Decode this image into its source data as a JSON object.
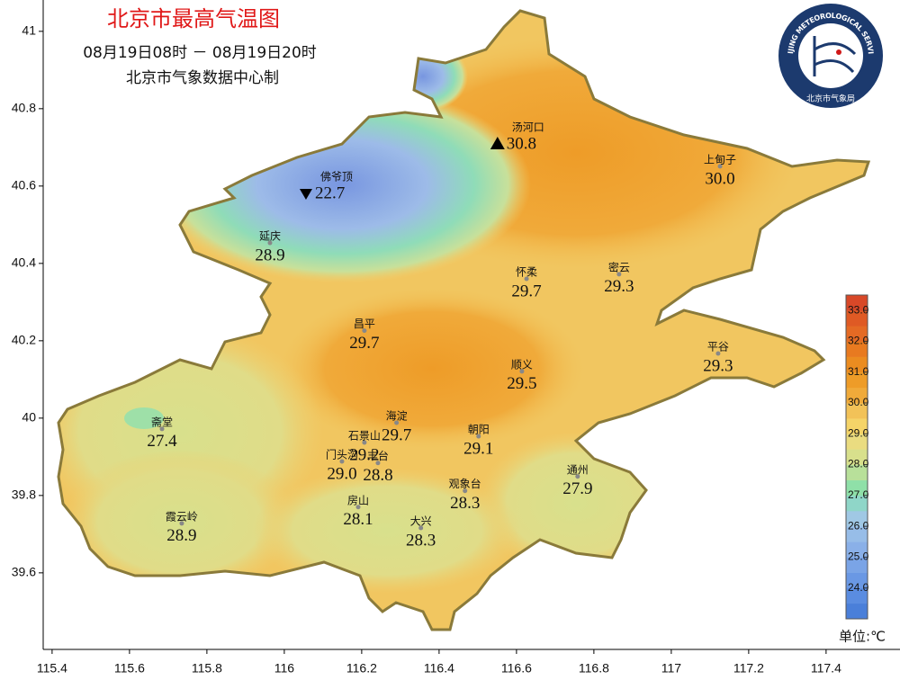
{
  "header": {
    "title": "北京市最高气温图",
    "period": "08月19日08时 － 08月19日20时",
    "source": "北京市气象数据中心制"
  },
  "logo": {
    "ring_text": "BEIJING METEOROLOGICAL SERVICE",
    "bottom_text": "北京市气象局"
  },
  "map": {
    "xlim": [
      115.377,
      117.591
    ],
    "ylim": [
      39.402,
      41.081
    ],
    "xticks": [
      115.4,
      115.6,
      115.8,
      116,
      116.2,
      116.4,
      116.6,
      116.8,
      117,
      117.2,
      117.4
    ],
    "yticks": [
      39.6,
      39.8,
      40,
      40.2,
      40.4,
      40.6,
      40.8,
      41
    ],
    "stations": [
      {
        "name": "汤河口",
        "lon": 116.551,
        "lat": 40.709,
        "value": 30.8,
        "marker": "max"
      },
      {
        "name": "佛爷顶",
        "lon": 116.056,
        "lat": 40.581,
        "value": 22.7,
        "marker": "min"
      },
      {
        "name": "上甸子",
        "lon": 117.126,
        "lat": 40.651,
        "value": 30.0,
        "value_label": "30.0"
      },
      {
        "name": "延庆",
        "lon": 115.963,
        "lat": 40.453,
        "value": 28.9
      },
      {
        "name": "怀柔",
        "lon": 116.626,
        "lat": 40.36,
        "value": 29.7
      },
      {
        "name": "密云",
        "lon": 116.865,
        "lat": 40.372,
        "value": 29.3
      },
      {
        "name": "昌平",
        "lon": 116.207,
        "lat": 40.226,
        "value": 29.7
      },
      {
        "name": "平谷",
        "lon": 117.121,
        "lat": 40.167,
        "value": 29.3
      },
      {
        "name": "顺义",
        "lon": 116.614,
        "lat": 40.121,
        "value": 29.5
      },
      {
        "name": "海淀",
        "lon": 116.29,
        "lat": 39.988,
        "value": 29.7
      },
      {
        "name": "石景山",
        "lon": 116.207,
        "lat": 39.937,
        "value": 29.2
      },
      {
        "name": "朝阳",
        "lon": 116.502,
        "lat": 39.953,
        "value": 29.1
      },
      {
        "name": "门头沟",
        "lon": 116.149,
        "lat": 39.888,
        "value": 29.0,
        "value_label": "29.0"
      },
      {
        "name": "丰台",
        "lon": 116.242,
        "lat": 39.884,
        "value": 28.8
      },
      {
        "name": "斋堂",
        "lon": 115.684,
        "lat": 39.972,
        "value": 27.4
      },
      {
        "name": "通州",
        "lon": 116.758,
        "lat": 39.849,
        "value": 27.9
      },
      {
        "name": "观象台",
        "lon": 116.467,
        "lat": 39.812,
        "value": 28.3
      },
      {
        "name": "房山",
        "lon": 116.191,
        "lat": 39.77,
        "value": 28.1
      },
      {
        "name": "大兴",
        "lon": 116.353,
        "lat": 39.716,
        "value": 28.3
      },
      {
        "name": "霞云岭",
        "lon": 115.735,
        "lat": 39.728,
        "value": 28.9
      }
    ]
  },
  "colorbar": {
    "range": [
      23,
      33.5
    ],
    "ticks": [
      {
        "value": 24,
        "label": "24.0"
      },
      {
        "value": 25,
        "label": "25.0"
      },
      {
        "value": 26,
        "label": "26.0"
      },
      {
        "value": 27,
        "label": "27.0"
      },
      {
        "value": 28,
        "label": "28.0"
      },
      {
        "value": 29,
        "label": "29.0"
      },
      {
        "value": 30,
        "label": "30.0"
      },
      {
        "value": 31,
        "label": "31.0"
      },
      {
        "value": 32,
        "label": "32.0"
      },
      {
        "value": 33,
        "label": "33.0"
      }
    ],
    "colors": [
      "#4a7fd9",
      "#5a8ce0",
      "#6a98e4",
      "#7aa4e6",
      "#8ab0e8",
      "#97bde8",
      "#a0c8e4",
      "#8fd6c8",
      "#8fe0a8",
      "#b8e09a",
      "#d8e08c",
      "#eadc80",
      "#f5d468",
      "#f2c258",
      "#f0aa3a",
      "#ee9c28",
      "#eb8c20",
      "#e87a20",
      "#e46a24",
      "#df5a24",
      "#d84828"
    ],
    "unit": "单位:℃"
  }
}
